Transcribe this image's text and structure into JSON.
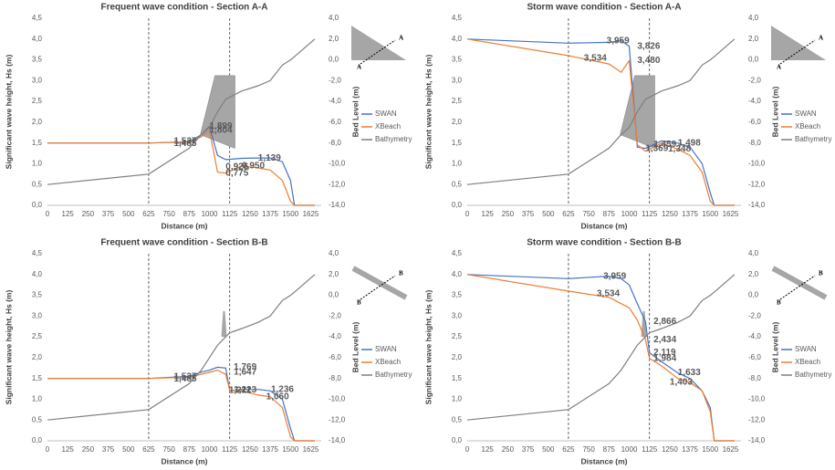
{
  "chart_data": [
    {
      "type": "line",
      "title": "Frequent wave condition - Section A-A",
      "section": "A",
      "xlabel": "Distance (m)",
      "ylabel": "Significant wave height, Hs (m)",
      "y2label": "Bed Level (m)",
      "x": [
        0,
        625,
        875,
        950,
        1000,
        1050,
        1100,
        1200,
        1300,
        1375,
        1450,
        1500,
        1525,
        1650
      ],
      "series": [
        {
          "name": "SWAN",
          "color": "#4472c4",
          "values": [
            1.5,
            1.5,
            1.53,
            1.7,
            1.899,
            1.2,
            1.1,
            1.13,
            1.14,
            1.139,
            1.05,
            0.6,
            0,
            0
          ]
        },
        {
          "name": "XBeach",
          "color": "#ed7d31",
          "values": [
            1.5,
            1.5,
            1.52,
            1.65,
            1.804,
            0.8,
            0.775,
            0.95,
            0.9,
            0.85,
            0.6,
            0.1,
            0,
            0
          ]
        },
        {
          "name": "Bathymetry",
          "color": "#7f7f7f",
          "axis": "y2",
          "values": [
            -12,
            -11,
            -8.5,
            -7.2,
            -6.5,
            -5,
            -3.8,
            -3.0,
            -2.5,
            -2.0,
            -0.5,
            0,
            0.3,
            2.0
          ]
        }
      ],
      "annotations": [
        {
          "x": 1000,
          "y": 1.899,
          "label": "1,899",
          "color": "#4472c4"
        },
        {
          "x": 1000,
          "y": 1.804,
          "label": "1,804",
          "color": "#ed7d31"
        },
        {
          "x": 780,
          "y": 1.537,
          "label": "1,537",
          "color": "#ed7d31"
        },
        {
          "x": 780,
          "y": 1.485,
          "label": "1,485",
          "color": "#4472c4"
        },
        {
          "x": 1100,
          "y": 0.926,
          "label": "0,926",
          "color": "#4472c4"
        },
        {
          "x": 1300,
          "y": 1.139,
          "label": "1,139",
          "color": "#4472c4"
        },
        {
          "x": 1100,
          "y": 0.775,
          "label": "0,775",
          "color": "#ed7d31"
        },
        {
          "x": 1200,
          "y": 0.95,
          "label": "0,950",
          "color": "#ed7d31"
        }
      ],
      "vlines": [
        625,
        1125
      ],
      "xlim": [
        0,
        1690
      ],
      "xticks": [
        0,
        125,
        250,
        375,
        500,
        625,
        750,
        875,
        1000,
        1125,
        1250,
        1375,
        1500,
        1625
      ],
      "ylim": [
        0,
        4.5
      ],
      "yticks": [
        {
          "value": 0,
          "label": "0,0"
        },
        {
          "value": 0.5,
          "label": "0,5"
        },
        {
          "value": 1,
          "label": "1,0"
        },
        {
          "value": 1.5,
          "label": "1,5"
        },
        {
          "value": 2,
          "label": "2,0"
        },
        {
          "value": 2.5,
          "label": "2,5"
        },
        {
          "value": 3,
          "label": "3,0"
        },
        {
          "value": 3.5,
          "label": "3,5"
        },
        {
          "value": 4,
          "label": "4,0"
        },
        {
          "value": 4.5,
          "label": "4,5"
        }
      ],
      "y2lim": [
        -14,
        4
      ],
      "y2ticks": [
        {
          "value": 4,
          "label": "4,0"
        },
        {
          "value": 2,
          "label": "2,0"
        },
        {
          "value": 0,
          "label": "0,0"
        },
        {
          "value": -2,
          "label": "-2,0"
        },
        {
          "value": -4,
          "label": "-4,0"
        },
        {
          "value": -6,
          "label": "-6,0"
        },
        {
          "value": -8,
          "label": "-8,0"
        },
        {
          "value": -10,
          "label": "-10,0"
        },
        {
          "value": -12,
          "label": "-12,0"
        },
        {
          "value": -14,
          "label": "-14,0"
        }
      ]
    },
    {
      "type": "line",
      "title": "Storm wave condition - Section A-A",
      "section": "A",
      "xlabel": "Distance (m)",
      "ylabel": "Significant wave height, Hs (m)",
      "y2label": "Bed Level (m)",
      "x": [
        0,
        625,
        875,
        950,
        1000,
        1050,
        1100,
        1200,
        1300,
        1375,
        1450,
        1500,
        1525,
        1650
      ],
      "series": [
        {
          "name": "SWAN",
          "color": "#4472c4",
          "values": [
            4.0,
            3.9,
            3.92,
            3.959,
            3.826,
            1.4,
            1.369,
            1.55,
            1.498,
            1.4,
            1.0,
            0.3,
            0,
            0
          ]
        },
        {
          "name": "XBeach",
          "color": "#ed7d31",
          "values": [
            4.0,
            3.6,
            3.4,
            3.2,
            3.48,
            1.459,
            1.3,
            1.5,
            1.348,
            1.2,
            0.8,
            0.1,
            0,
            0
          ]
        },
        {
          "name": "Bathymetry",
          "color": "#7f7f7f",
          "axis": "y2",
          "values": [
            -12,
            -11,
            -8.5,
            -7.2,
            -6.5,
            -5,
            -3.8,
            -3.0,
            -2.5,
            -2.0,
            -0.5,
            0,
            0.3,
            2.0
          ]
        }
      ],
      "annotations": [
        {
          "x": 860,
          "y": 3.959,
          "label": "3,959",
          "color": "#4472c4"
        },
        {
          "x": 1050,
          "y": 3.826,
          "label": "3,826",
          "color": "#4472c4"
        },
        {
          "x": 720,
          "y": 3.534,
          "label": "3,534",
          "color": "#ed7d31"
        },
        {
          "x": 1050,
          "y": 3.48,
          "label": "3,480",
          "color": "#ed7d31"
        },
        {
          "x": 1150,
          "y": 1.459,
          "label": "1,459",
          "color": "#ed7d31"
        },
        {
          "x": 1300,
          "y": 1.498,
          "label": "1,498",
          "color": "#4472c4"
        },
        {
          "x": 1100,
          "y": 1.369,
          "label": "1,369",
          "color": "#4472c4"
        },
        {
          "x": 1240,
          "y": 1.348,
          "label": "1,348",
          "color": "#ed7d31"
        }
      ],
      "vlines": [
        625,
        1125
      ],
      "xlim": [
        0,
        1690
      ],
      "xticks": [
        0,
        125,
        250,
        375,
        500,
        625,
        750,
        875,
        1000,
        1125,
        1250,
        1375,
        1500,
        1625
      ],
      "ylim": [
        0,
        4.5
      ],
      "yticks": [
        {
          "value": 0,
          "label": "0,0"
        },
        {
          "value": 0.5,
          "label": "0,5"
        },
        {
          "value": 1,
          "label": "1,0"
        },
        {
          "value": 1.5,
          "label": "1,5"
        },
        {
          "value": 2,
          "label": "2,0"
        },
        {
          "value": 2.5,
          "label": "2,5"
        },
        {
          "value": 3,
          "label": "3,0"
        },
        {
          "value": 3.5,
          "label": "3,5"
        },
        {
          "value": 4,
          "label": "4,0"
        },
        {
          "value": 4.5,
          "label": "4,5"
        }
      ],
      "y2lim": [
        -14,
        4
      ],
      "y2ticks": [
        {
          "value": 4,
          "label": "4,0"
        },
        {
          "value": 2,
          "label": "2,0"
        },
        {
          "value": 0,
          "label": "0,0"
        },
        {
          "value": -2,
          "label": "-2,0"
        },
        {
          "value": -4,
          "label": "-4,0"
        },
        {
          "value": -6,
          "label": "-6,0"
        },
        {
          "value": -8,
          "label": "-8,0"
        },
        {
          "value": -10,
          "label": "-10,0"
        },
        {
          "value": -12,
          "label": "-12,0"
        },
        {
          "value": -14,
          "label": "-14,0"
        }
      ]
    },
    {
      "type": "line",
      "title": "Frequent wave condition - Section B-B",
      "section": "B",
      "xlabel": "Distance (m)",
      "ylabel": "Significant wave height, Hs (m)",
      "y2label": "Bed Level (m)",
      "x": [
        0,
        625,
        875,
        950,
        1000,
        1050,
        1100,
        1125,
        1200,
        1300,
        1375,
        1450,
        1500,
        1525,
        1650
      ],
      "series": [
        {
          "name": "SWAN",
          "color": "#4472c4",
          "values": [
            1.5,
            1.5,
            1.55,
            1.65,
            1.7,
            1.769,
            1.75,
            1.211,
            1.236,
            1.236,
            1.2,
            1.0,
            0.3,
            0,
            0
          ]
        },
        {
          "name": "XBeach",
          "color": "#ed7d31",
          "values": [
            1.5,
            1.5,
            1.53,
            1.6,
            1.647,
            1.7,
            1.6,
            1.223,
            1.2,
            1.1,
            1.06,
            0.8,
            0.1,
            0,
            0
          ]
        },
        {
          "name": "Bathymetry",
          "color": "#7f7f7f",
          "axis": "y2",
          "values": [
            -12,
            -11,
            -8.5,
            -7.2,
            -6.0,
            -4.8,
            -4.0,
            -3.6,
            -3.2,
            -2.6,
            -2.0,
            -0.5,
            0,
            0.3,
            2.0
          ]
        }
      ],
      "annotations": [
        {
          "x": 780,
          "y": 1.537,
          "label": "1,537",
          "color": "#ed7d31"
        },
        {
          "x": 780,
          "y": 1.485,
          "label": "1,485",
          "color": "#4472c4"
        },
        {
          "x": 1150,
          "y": 1.769,
          "label": "1,769",
          "color": "#4472c4"
        },
        {
          "x": 1150,
          "y": 1.647,
          "label": "1,647",
          "color": "#ed7d31"
        },
        {
          "x": 1150,
          "y": 1.223,
          "label": "1,223",
          "color": "#ed7d31"
        },
        {
          "x": 1120,
          "y": 1.211,
          "label": "1,211",
          "color": "#4472c4"
        },
        {
          "x": 1380,
          "y": 1.236,
          "label": "1,236",
          "color": "#4472c4"
        },
        {
          "x": 1350,
          "y": 1.06,
          "label": "1,060",
          "color": "#ed7d31"
        }
      ],
      "vlines": [
        625,
        1125
      ],
      "xlim": [
        0,
        1690
      ],
      "xticks": [
        0,
        125,
        250,
        375,
        500,
        625,
        750,
        875,
        1000,
        1125,
        1250,
        1375,
        1500,
        1625
      ],
      "ylim": [
        0,
        4.5
      ],
      "yticks": [
        {
          "value": 0,
          "label": "0,0"
        },
        {
          "value": 0.5,
          "label": "0,5"
        },
        {
          "value": 1,
          "label": "1,0"
        },
        {
          "value": 1.5,
          "label": "1,5"
        },
        {
          "value": 2,
          "label": "2,0"
        },
        {
          "value": 2.5,
          "label": "2,5"
        },
        {
          "value": 3,
          "label": "3,0"
        },
        {
          "value": 3.5,
          "label": "3,5"
        },
        {
          "value": 4,
          "label": "4,0"
        },
        {
          "value": 4.5,
          "label": "4,5"
        }
      ],
      "y2lim": [
        -14,
        4
      ],
      "y2ticks": [
        {
          "value": 4,
          "label": "4,0"
        },
        {
          "value": 2,
          "label": "2,0"
        },
        {
          "value": 0,
          "label": "0,0"
        },
        {
          "value": -2,
          "label": "-2,0"
        },
        {
          "value": -4,
          "label": "-4,0"
        },
        {
          "value": -6,
          "label": "-6,0"
        },
        {
          "value": -8,
          "label": "-8,0"
        },
        {
          "value": -10,
          "label": "-10,0"
        },
        {
          "value": -12,
          "label": "-12,0"
        },
        {
          "value": -14,
          "label": "-14,0"
        }
      ]
    },
    {
      "type": "line",
      "title": "Storm wave condition - Section B-B",
      "section": "B",
      "xlabel": "Distance (m)",
      "ylabel": "Significant wave height, Hs (m)",
      "y2label": "Bed Level (m)",
      "x": [
        0,
        625,
        875,
        950,
        1000,
        1050,
        1100,
        1125,
        1200,
        1300,
        1375,
        1450,
        1500,
        1525,
        1650
      ],
      "series": [
        {
          "name": "SWAN",
          "color": "#4472c4",
          "values": [
            4.0,
            3.9,
            3.959,
            3.9,
            3.75,
            3.3,
            2.866,
            2.119,
            1.9,
            1.633,
            1.5,
            1.2,
            0.8,
            0,
            0
          ]
        },
        {
          "name": "XBeach",
          "color": "#ed7d31",
          "values": [
            4.0,
            3.6,
            3.45,
            3.3,
            3.2,
            2.9,
            2.434,
            1.984,
            1.8,
            1.5,
            1.403,
            1.2,
            0.7,
            0,
            0
          ]
        },
        {
          "name": "Bathymetry",
          "color": "#7f7f7f",
          "axis": "y2",
          "values": [
            -12,
            -11,
            -8.5,
            -7.2,
            -6.0,
            -4.8,
            -4.0,
            -3.6,
            -3.2,
            -2.6,
            -2.0,
            -0.5,
            0,
            0.3,
            2.0
          ]
        }
      ],
      "annotations": [
        {
          "x": 840,
          "y": 3.959,
          "label": "3,959",
          "color": "#4472c4"
        },
        {
          "x": 800,
          "y": 3.534,
          "label": "3,534",
          "color": "#ed7d31"
        },
        {
          "x": 1150,
          "y": 2.866,
          "label": "2,866",
          "color": "#4472c4"
        },
        {
          "x": 1150,
          "y": 2.434,
          "label": "2,434",
          "color": "#ed7d31"
        },
        {
          "x": 1150,
          "y": 2.119,
          "label": "2,119",
          "color": "#4472c4"
        },
        {
          "x": 1150,
          "y": 1.984,
          "label": "1,984",
          "color": "#ed7d31"
        },
        {
          "x": 1300,
          "y": 1.633,
          "label": "1,633",
          "color": "#4472c4"
        },
        {
          "x": 1250,
          "y": 1.403,
          "label": "1,403",
          "color": "#ed7d31"
        }
      ],
      "vlines": [
        625,
        1125
      ],
      "xlim": [
        0,
        1690
      ],
      "xticks": [
        0,
        125,
        250,
        375,
        500,
        625,
        750,
        875,
        1000,
        1125,
        1250,
        1375,
        1500,
        1625
      ],
      "ylim": [
        0,
        4.5
      ],
      "yticks": [
        {
          "value": 0,
          "label": "0,0"
        },
        {
          "value": 0.5,
          "label": "0,5"
        },
        {
          "value": 1,
          "label": "1,0"
        },
        {
          "value": 1.5,
          "label": "1,5"
        },
        {
          "value": 2,
          "label": "2,0"
        },
        {
          "value": 2.5,
          "label": "2,5"
        },
        {
          "value": 3,
          "label": "3,0"
        },
        {
          "value": 3.5,
          "label": "3,5"
        },
        {
          "value": 4,
          "label": "4,0"
        },
        {
          "value": 4.5,
          "label": "4,5"
        }
      ],
      "y2lim": [
        -14,
        4
      ],
      "y2ticks": [
        {
          "value": 4,
          "label": "4,0"
        },
        {
          "value": 2,
          "label": "2,0"
        },
        {
          "value": 0,
          "label": "0,0"
        },
        {
          "value": -2,
          "label": "-2,0"
        },
        {
          "value": -4,
          "label": "-4,0"
        },
        {
          "value": -6,
          "label": "-6,0"
        },
        {
          "value": -8,
          "label": "-8,0"
        },
        {
          "value": -10,
          "label": "-10,0"
        },
        {
          "value": -12,
          "label": "-12,0"
        },
        {
          "value": -14,
          "label": "-14,0"
        }
      ]
    }
  ]
}
